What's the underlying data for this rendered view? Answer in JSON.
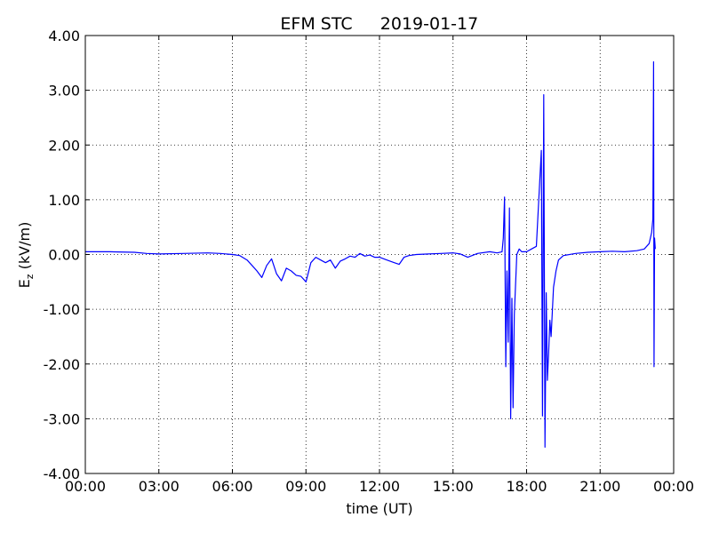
{
  "chart_data": {
    "type": "line",
    "title_left": "EFM STC",
    "title_right": "2019-01-17",
    "xlabel": "time (UT)",
    "ylabel_main": "E",
    "ylabel_sub": "z",
    "ylabel_unit": " (kV/m)",
    "xlim": [
      0,
      24
    ],
    "ylim": [
      -4,
      4
    ],
    "grid": true,
    "x_ticks": [
      {
        "value": 0,
        "label": "00:00"
      },
      {
        "value": 3,
        "label": "03:00"
      },
      {
        "value": 6,
        "label": "06:00"
      },
      {
        "value": 9,
        "label": "09:00"
      },
      {
        "value": 12,
        "label": "12:00"
      },
      {
        "value": 15,
        "label": "15:00"
      },
      {
        "value": 18,
        "label": "18:00"
      },
      {
        "value": 21,
        "label": "21:00"
      },
      {
        "value": 24,
        "label": "00:00"
      }
    ],
    "y_ticks": [
      {
        "value": 4,
        "label": "4.00"
      },
      {
        "value": 3,
        "label": "3.00"
      },
      {
        "value": 2,
        "label": "2.00"
      },
      {
        "value": 1,
        "label": "1.00"
      },
      {
        "value": 0,
        "label": "0.00"
      },
      {
        "value": -1,
        "label": "-1.00"
      },
      {
        "value": -2,
        "label": "-2.00"
      },
      {
        "value": -3,
        "label": "-3.00"
      },
      {
        "value": -4,
        "label": "-4.00"
      }
    ],
    "series": [
      {
        "color": "#0000ff",
        "x": [
          0.0,
          1.0,
          2.0,
          2.5,
          3.0,
          4.0,
          5.0,
          5.5,
          6.0,
          6.3,
          6.6,
          6.8,
          7.0,
          7.2,
          7.4,
          7.6,
          7.8,
          8.0,
          8.2,
          8.4,
          8.6,
          8.8,
          9.0,
          9.2,
          9.4,
          9.6,
          9.8,
          10.0,
          10.2,
          10.4,
          10.6,
          10.8,
          11.0,
          11.2,
          11.4,
          11.6,
          11.8,
          12.0,
          12.3,
          12.6,
          12.8,
          13.0,
          13.2,
          13.5,
          14.0,
          14.5,
          15.0,
          15.3,
          15.6,
          16.0,
          16.5,
          16.8,
          17.0,
          17.05,
          17.1,
          17.15,
          17.2,
          17.25,
          17.3,
          17.35,
          17.4,
          17.45,
          17.5,
          17.6,
          17.7,
          17.8,
          18.0,
          18.2,
          18.4,
          18.6,
          18.65,
          18.7,
          18.75,
          18.8,
          18.85,
          18.9,
          18.95,
          19.0,
          19.1,
          19.2,
          19.3,
          19.5,
          20.0,
          20.5,
          21.0,
          21.5,
          22.0,
          22.5,
          22.8,
          23.0,
          23.1,
          23.15,
          23.18,
          23.2,
          23.22,
          23.25
        ],
        "y": [
          0.05,
          0.05,
          0.04,
          0.02,
          0.01,
          0.02,
          0.03,
          0.02,
          0.0,
          -0.02,
          -0.1,
          -0.2,
          -0.3,
          -0.42,
          -0.2,
          -0.08,
          -0.35,
          -0.48,
          -0.25,
          -0.3,
          -0.38,
          -0.4,
          -0.5,
          -0.15,
          -0.05,
          -0.1,
          -0.15,
          -0.1,
          -0.25,
          -0.12,
          -0.08,
          -0.03,
          -0.05,
          0.02,
          -0.03,
          -0.01,
          -0.05,
          -0.05,
          -0.1,
          -0.15,
          -0.18,
          -0.05,
          -0.02,
          0.0,
          0.01,
          0.02,
          0.03,
          0.01,
          -0.05,
          0.02,
          0.05,
          0.03,
          0.05,
          0.3,
          1.05,
          -2.05,
          -0.3,
          -1.6,
          0.85,
          -3.0,
          -0.8,
          -2.8,
          -1.1,
          0.0,
          0.1,
          0.05,
          0.05,
          0.1,
          0.15,
          1.9,
          -2.95,
          2.92,
          -3.52,
          -0.7,
          -2.3,
          -1.8,
          -1.2,
          -1.5,
          -0.6,
          -0.3,
          -0.1,
          -0.02,
          0.02,
          0.04,
          0.05,
          0.06,
          0.05,
          0.07,
          0.1,
          0.2,
          0.4,
          0.65,
          3.52,
          -2.05,
          0.3,
          0.1
        ]
      }
    ]
  }
}
